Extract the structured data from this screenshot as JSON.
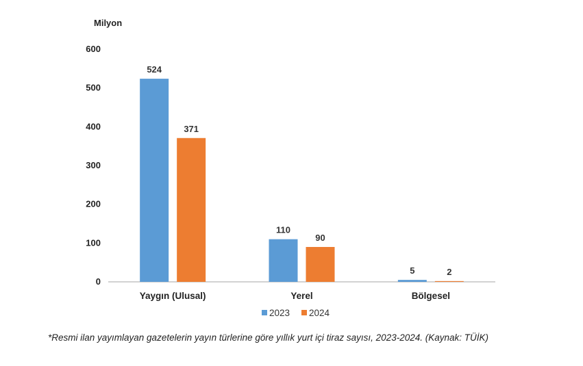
{
  "chart_data": {
    "type": "bar",
    "ylabel": "Milyon",
    "ylim": [
      0,
      600
    ],
    "yticks": [
      "0",
      "100",
      "200",
      "300",
      "400",
      "500",
      "600"
    ],
    "categories": [
      "Yaygın (Ulusal)",
      "Yerel",
      "Bölgesel"
    ],
    "series": [
      {
        "name": "2023",
        "color": "#5b9bd5",
        "values": [
          524,
          110,
          5
        ],
        "labels": [
          "524",
          "110",
          "5"
        ]
      },
      {
        "name": "2024",
        "color": "#ed7d31",
        "values": [
          371,
          90,
          2
        ],
        "labels": [
          "371",
          "90",
          "2"
        ]
      }
    ],
    "grid": false,
    "legend": "bottom-center"
  },
  "caption": "*Resmi ilan yayımlayan gazetelerin yayın türlerine göre yıllık yurt içi tiraz sayısı, 2023-2024. (Kaynak: TÜİK)"
}
